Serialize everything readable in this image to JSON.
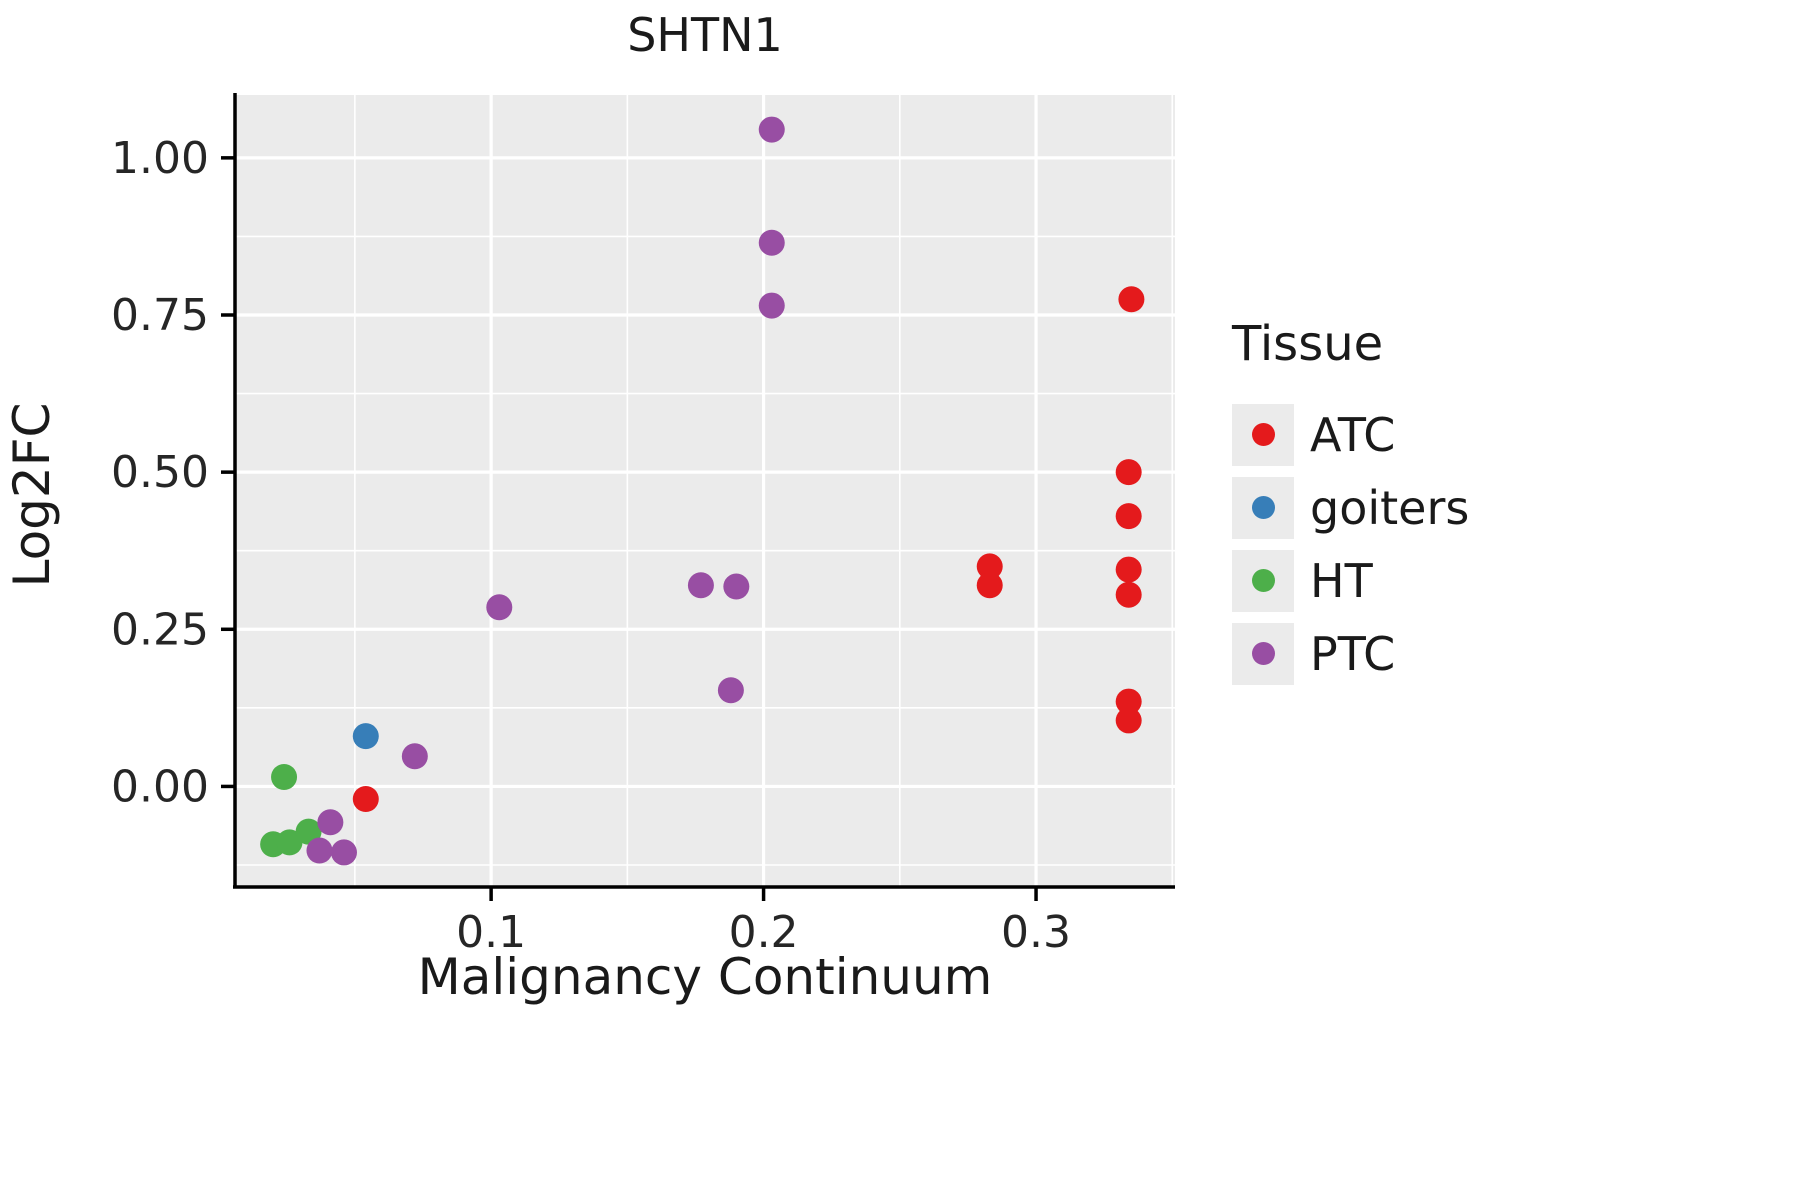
{
  "title": "SHTN1",
  "legend": {
    "title": "Tissue",
    "items": [
      {
        "label": "ATC",
        "color": "#E41A1C"
      },
      {
        "label": "goiters",
        "color": "#377EB8"
      },
      {
        "label": "HT",
        "color": "#4DAF4A"
      },
      {
        "label": "PTC",
        "color": "#984EA3"
      }
    ]
  },
  "chart_data": {
    "type": "scatter",
    "title": "SHTN1",
    "xlabel": "Malignancy Continuum",
    "ylabel": "Log2FC",
    "xlim": [
      0.006,
      0.351
    ],
    "ylim": [
      -0.16,
      1.1
    ],
    "panel_bg": "#EBEBEB",
    "grid": true,
    "legend_position": "right",
    "x_ticks": [
      {
        "v": 0.1,
        "label": "0.1"
      },
      {
        "v": 0.2,
        "label": "0.2"
      },
      {
        "v": 0.3,
        "label": "0.3"
      }
    ],
    "x_minor_ticks": [
      0.05,
      0.15,
      0.25,
      0.35
    ],
    "y_ticks": [
      {
        "v": 0.0,
        "label": "0.00"
      },
      {
        "v": 0.25,
        "label": "0.25"
      },
      {
        "v": 0.5,
        "label": "0.50"
      },
      {
        "v": 0.75,
        "label": "0.75"
      },
      {
        "v": 1.0,
        "label": "1.00"
      }
    ],
    "y_minor_ticks": [
      -0.125,
      0.125,
      0.375,
      0.625,
      0.875
    ],
    "series": [
      {
        "name": "ATC",
        "color": "#E41A1C",
        "points": [
          [
            0.054,
            -0.02
          ],
          [
            0.283,
            0.35
          ],
          [
            0.283,
            0.32
          ],
          [
            0.335,
            0.775
          ],
          [
            0.334,
            0.5
          ],
          [
            0.334,
            0.43
          ],
          [
            0.334,
            0.345
          ],
          [
            0.334,
            0.305
          ],
          [
            0.334,
            0.135
          ],
          [
            0.334,
            0.105
          ]
        ]
      },
      {
        "name": "goiters",
        "color": "#377EB8",
        "points": [
          [
            0.054,
            0.08
          ]
        ]
      },
      {
        "name": "HT",
        "color": "#4DAF4A",
        "points": [
          [
            0.024,
            0.015
          ],
          [
            0.02,
            -0.092
          ],
          [
            0.026,
            -0.089
          ],
          [
            0.033,
            -0.072
          ]
        ]
      },
      {
        "name": "PTC",
        "color": "#984EA3",
        "points": [
          [
            0.041,
            -0.057
          ],
          [
            0.037,
            -0.102
          ],
          [
            0.046,
            -0.105
          ],
          [
            0.072,
            0.048
          ],
          [
            0.103,
            0.285
          ],
          [
            0.177,
            0.32
          ],
          [
            0.19,
            0.318
          ],
          [
            0.188,
            0.153
          ],
          [
            0.203,
            1.045
          ],
          [
            0.203,
            0.865
          ],
          [
            0.203,
            0.765
          ]
        ]
      }
    ]
  }
}
